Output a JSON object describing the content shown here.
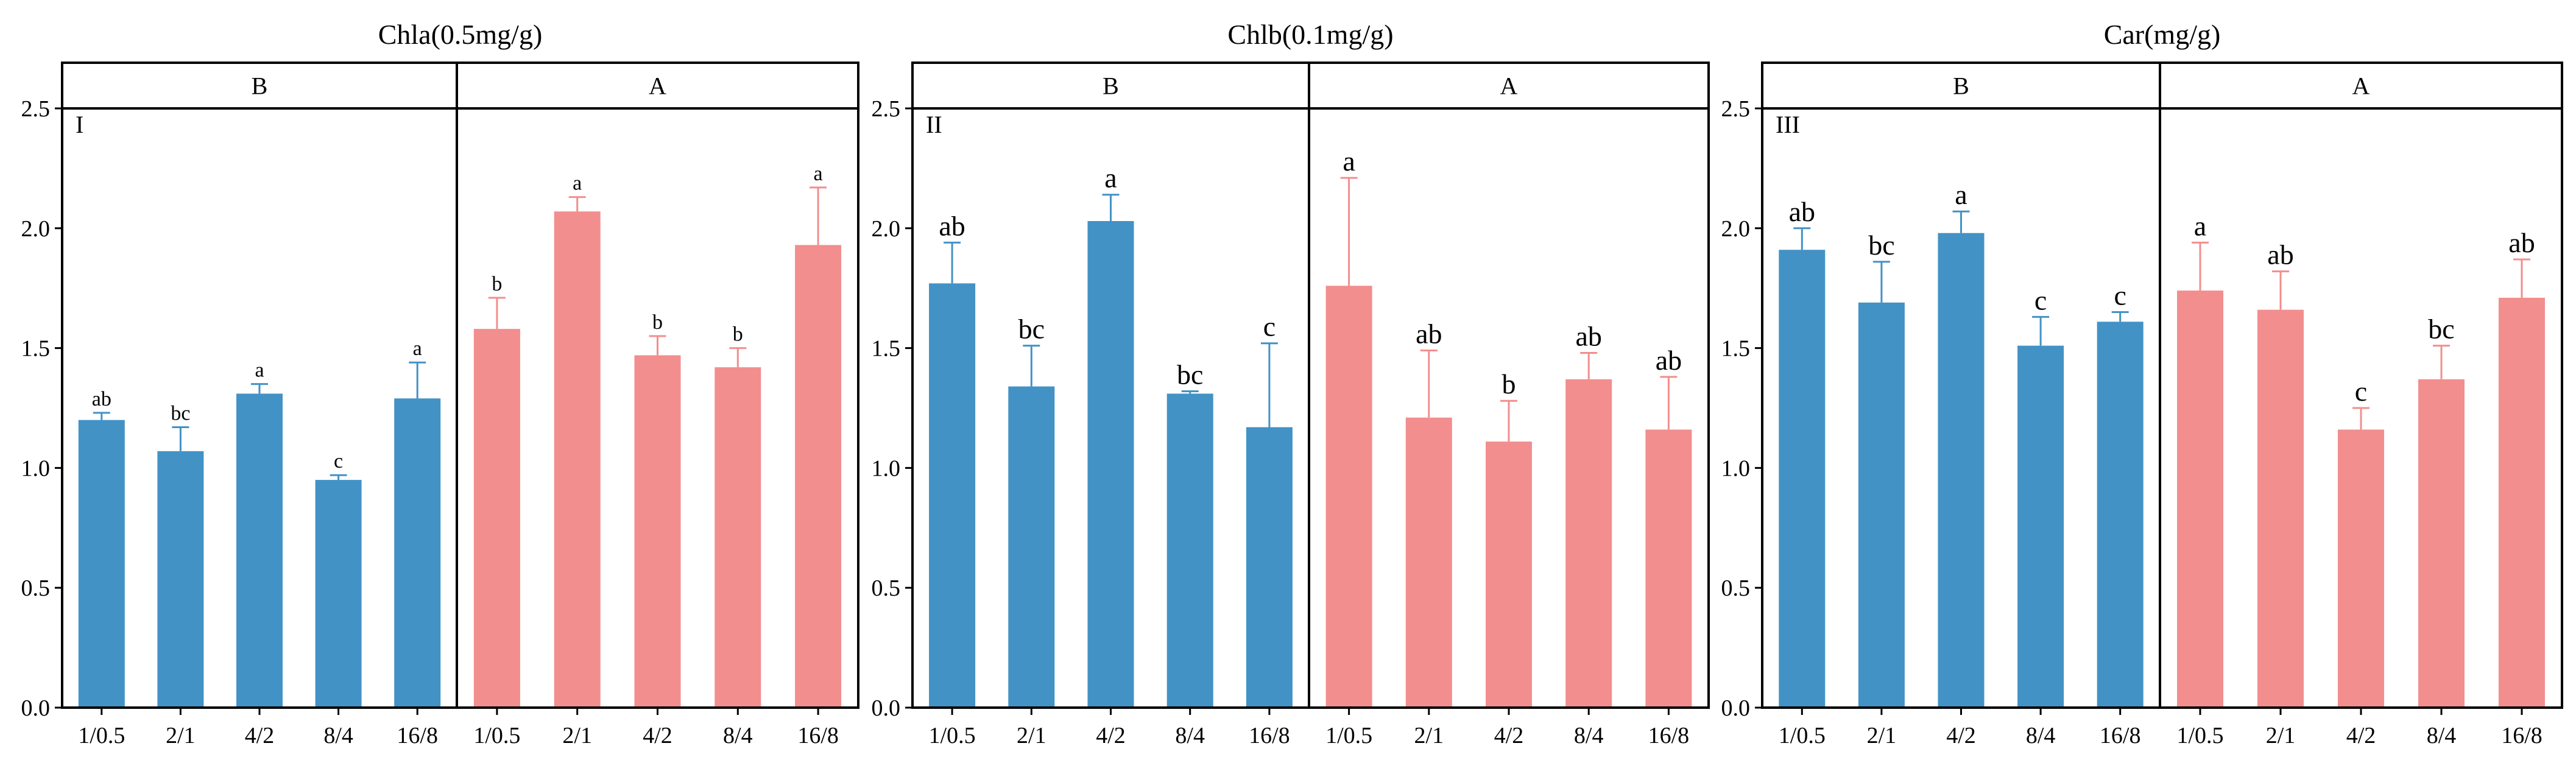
{
  "figure": {
    "background": "#ffffff",
    "colors": {
      "B": "#4292c6",
      "A": "#f28e8e",
      "err_B": "#4292c6",
      "err_A": "#f28e8e",
      "axis": "#000000"
    }
  },
  "chart_data": [
    {
      "type": "bar",
      "title": "Chla(0.5mg/g)",
      "panel_label": "I",
      "ylim": [
        0,
        2.5
      ],
      "yticks": [
        "0.0",
        "0.5",
        "1.0",
        "1.5",
        "2.0",
        "2.5"
      ],
      "categories": [
        "1/0.5",
        "2/1",
        "4/2",
        "8/4",
        "16/8"
      ],
      "groups": [
        {
          "name": "B",
          "values": [
            1.2,
            1.07,
            1.31,
            0.95,
            1.29
          ],
          "errors": [
            0.03,
            0.1,
            0.04,
            0.02,
            0.15
          ],
          "letters": [
            "ab",
            "bc",
            "a",
            "c",
            "a"
          ]
        },
        {
          "name": "A",
          "values": [
            1.58,
            2.07,
            1.47,
            1.42,
            1.93
          ],
          "errors": [
            0.13,
            0.06,
            0.08,
            0.08,
            0.24
          ],
          "letters": [
            "b",
            "a",
            "b",
            "b",
            "a"
          ]
        }
      ]
    },
    {
      "type": "bar",
      "title": "Chlb(0.1mg/g)",
      "panel_label": "II",
      "ylim": [
        0,
        2.5
      ],
      "yticks": [
        "0.0",
        "0.5",
        "1.0",
        "1.5",
        "2.0",
        "2.5"
      ],
      "categories": [
        "1/0.5",
        "2/1",
        "4/2",
        "8/4",
        "16/8"
      ],
      "groups": [
        {
          "name": "B",
          "values": [
            1.77,
            1.34,
            2.03,
            1.31,
            1.17
          ],
          "errors": [
            0.17,
            0.17,
            0.11,
            0.01,
            0.35
          ],
          "letters": [
            "ab",
            "bc",
            "a",
            "bc",
            "c"
          ]
        },
        {
          "name": "A",
          "values": [
            1.76,
            1.21,
            1.11,
            1.37,
            1.16
          ],
          "errors": [
            0.45,
            0.28,
            0.17,
            0.11,
            0.22
          ],
          "letters": [
            "a",
            "ab",
            "b",
            "ab",
            "ab"
          ]
        }
      ]
    },
    {
      "type": "bar",
      "title": "Car(mg/g)",
      "panel_label": "III",
      "ylim": [
        0,
        2.5
      ],
      "yticks": [
        "0.0",
        "0.5",
        "1.0",
        "1.5",
        "2.0",
        "2.5"
      ],
      "categories": [
        "1/0.5",
        "2/1",
        "4/2",
        "8/4",
        "16/8"
      ],
      "groups": [
        {
          "name": "B",
          "values": [
            1.91,
            1.69,
            1.98,
            1.51,
            1.61
          ],
          "errors": [
            0.09,
            0.17,
            0.09,
            0.12,
            0.04
          ],
          "letters": [
            "ab",
            "bc",
            "a",
            "c",
            "c"
          ]
        },
        {
          "name": "A",
          "values": [
            1.74,
            1.66,
            1.16,
            1.37,
            1.71
          ],
          "errors": [
            0.2,
            0.16,
            0.09,
            0.14,
            0.16
          ],
          "letters": [
            "a",
            "ab",
            "c",
            "bc",
            "ab"
          ]
        }
      ]
    }
  ]
}
